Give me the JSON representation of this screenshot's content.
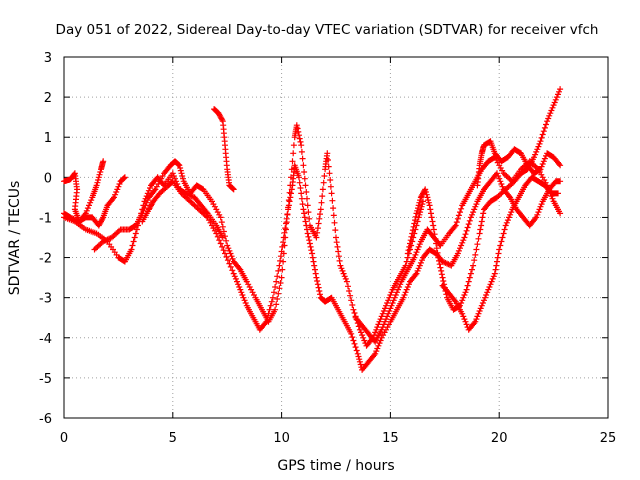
{
  "chart_data": {
    "type": "scatter",
    "title": "Day 051 of 2022, Sidereal Day-to-day VTEC variation (SDTVAR) for receiver vfch",
    "xlabel": "GPS time / hours",
    "ylabel": "SDTVAR / TECUs",
    "xlim": [
      0,
      25
    ],
    "ylim": [
      -6,
      3
    ],
    "xticks": [
      0,
      5,
      10,
      15,
      20,
      25
    ],
    "yticks": [
      -6,
      -5,
      -4,
      -3,
      -2,
      -1,
      0,
      1,
      2,
      3
    ],
    "grid": true,
    "marker": "+",
    "color": "#ff0000",
    "series": [
      {
        "name": "track-1",
        "points": [
          [
            0.0,
            -0.1
          ],
          [
            0.3,
            -0.05
          ],
          [
            0.5,
            0.1
          ],
          [
            0.6,
            -0.3
          ],
          [
            0.5,
            -0.8
          ],
          [
            0.7,
            -1.1
          ],
          [
            1.0,
            -1.0
          ],
          [
            1.3,
            -1.0
          ],
          [
            1.6,
            -1.2
          ],
          [
            1.8,
            -1.0
          ],
          [
            2.0,
            -0.7
          ],
          [
            2.3,
            -0.5
          ],
          [
            2.6,
            -0.1
          ],
          [
            2.8,
            0.0
          ]
        ]
      },
      {
        "name": "track-2",
        "points": [
          [
            0.0,
            -0.9
          ],
          [
            0.3,
            -1.0
          ],
          [
            0.7,
            -1.1
          ],
          [
            1.0,
            -0.9
          ],
          [
            1.3,
            -0.5
          ],
          [
            1.5,
            -0.2
          ],
          [
            1.7,
            0.2
          ],
          [
            1.8,
            0.4
          ]
        ]
      },
      {
        "name": "track-3",
        "points": [
          [
            0.0,
            -1.0
          ],
          [
            0.5,
            -1.1
          ],
          [
            1.0,
            -1.3
          ],
          [
            1.5,
            -1.4
          ],
          [
            2.0,
            -1.6
          ],
          [
            2.5,
            -2.0
          ],
          [
            2.8,
            -2.1
          ],
          [
            3.1,
            -1.8
          ],
          [
            3.4,
            -1.2
          ],
          [
            3.7,
            -0.6
          ],
          [
            4.0,
            -0.2
          ],
          [
            4.3,
            0.0
          ],
          [
            4.6,
            -0.2
          ],
          [
            5.0,
            0.1
          ],
          [
            5.3,
            -0.3
          ],
          [
            5.6,
            -0.4
          ],
          [
            6.0,
            -0.5
          ],
          [
            6.3,
            -0.7
          ],
          [
            6.6,
            -0.9
          ],
          [
            7.0,
            -1.2
          ],
          [
            7.3,
            -1.5
          ]
        ]
      },
      {
        "name": "track-4",
        "points": [
          [
            1.4,
            -1.8
          ],
          [
            1.8,
            -1.6
          ],
          [
            2.2,
            -1.5
          ],
          [
            2.6,
            -1.3
          ],
          [
            3.0,
            -1.3
          ],
          [
            3.3,
            -1.2
          ],
          [
            3.6,
            -0.9
          ],
          [
            3.9,
            -0.5
          ],
          [
            4.2,
            -0.3
          ],
          [
            4.6,
            0.1
          ],
          [
            4.9,
            0.3
          ],
          [
            5.1,
            0.4
          ],
          [
            5.3,
            0.3
          ],
          [
            5.5,
            -0.1
          ],
          [
            5.8,
            -0.4
          ],
          [
            6.1,
            -0.2
          ],
          [
            6.4,
            -0.3
          ],
          [
            6.8,
            -0.6
          ],
          [
            7.2,
            -1.0
          ],
          [
            7.5,
            -1.7
          ],
          [
            7.8,
            -2.1
          ],
          [
            8.1,
            -2.3
          ],
          [
            8.4,
            -2.6
          ],
          [
            8.8,
            -3.0
          ],
          [
            9.1,
            -3.3
          ],
          [
            9.4,
            -3.6
          ],
          [
            9.7,
            -3.3
          ],
          [
            10.0,
            -2.5
          ],
          [
            10.2,
            -1.3
          ],
          [
            10.4,
            -0.2
          ],
          [
            10.6,
            1.0
          ],
          [
            10.7,
            1.3
          ],
          [
            10.9,
            0.8
          ],
          [
            11.1,
            -0.2
          ],
          [
            11.3,
            -1.2
          ],
          [
            11.6,
            -1.5
          ],
          [
            11.8,
            -0.8
          ],
          [
            12.0,
            0.2
          ],
          [
            12.1,
            0.6
          ],
          [
            12.3,
            -0.4
          ],
          [
            12.5,
            -1.5
          ],
          [
            12.7,
            -2.2
          ],
          [
            13.0,
            -2.6
          ],
          [
            13.3,
            -3.3
          ],
          [
            13.6,
            -3.8
          ],
          [
            13.9,
            -4.2
          ],
          [
            14.2,
            -4.0
          ],
          [
            14.5,
            -3.6
          ],
          [
            14.8,
            -3.2
          ],
          [
            15.1,
            -2.8
          ],
          [
            15.4,
            -2.5
          ],
          [
            15.7,
            -2.2
          ],
          [
            16.0,
            -1.6
          ],
          [
            16.3,
            -1.0
          ],
          [
            16.5,
            -0.6
          ]
        ]
      },
      {
        "name": "track-5",
        "points": [
          [
            3.6,
            -1.1
          ],
          [
            3.9,
            -0.8
          ],
          [
            4.1,
            -0.6
          ],
          [
            4.4,
            -0.4
          ],
          [
            4.8,
            -0.2
          ],
          [
            5.0,
            -0.1
          ],
          [
            5.4,
            -0.4
          ],
          [
            5.8,
            -0.6
          ],
          [
            6.2,
            -0.8
          ],
          [
            6.6,
            -1.0
          ],
          [
            7.0,
            -1.4
          ],
          [
            7.4,
            -1.9
          ],
          [
            7.8,
            -2.4
          ],
          [
            8.1,
            -2.8
          ],
          [
            8.4,
            -3.2
          ],
          [
            8.7,
            -3.5
          ],
          [
            9.0,
            -3.8
          ],
          [
            9.3,
            -3.6
          ],
          [
            9.6,
            -3.0
          ],
          [
            9.9,
            -2.2
          ],
          [
            10.1,
            -1.5
          ],
          [
            10.3,
            -0.8
          ],
          [
            10.5,
            -0.2
          ],
          [
            10.6,
            0.3
          ],
          [
            10.8,
            0.0
          ],
          [
            11.0,
            -0.8
          ],
          [
            11.2,
            -1.4
          ],
          [
            11.4,
            -1.9
          ],
          [
            11.6,
            -2.5
          ],
          [
            11.8,
            -3.0
          ],
          [
            12.0,
            -3.1
          ],
          [
            12.3,
            -3.0
          ],
          [
            12.6,
            -3.3
          ],
          [
            12.9,
            -3.6
          ],
          [
            13.2,
            -3.9
          ],
          [
            13.5,
            -4.4
          ],
          [
            13.7,
            -4.8
          ],
          [
            14.0,
            -4.6
          ],
          [
            14.3,
            -4.4
          ],
          [
            14.6,
            -4.0
          ],
          [
            15.0,
            -3.6
          ],
          [
            15.3,
            -3.3
          ],
          [
            15.6,
            -3.0
          ],
          [
            15.9,
            -2.6
          ],
          [
            16.2,
            -2.4
          ],
          [
            16.5,
            -2.0
          ],
          [
            16.8,
            -1.8
          ],
          [
            17.1,
            -1.9
          ],
          [
            17.4,
            -2.1
          ],
          [
            17.8,
            -2.2
          ],
          [
            18.1,
            -1.9
          ],
          [
            18.4,
            -1.5
          ],
          [
            18.7,
            -1.0
          ],
          [
            19.0,
            -0.6
          ],
          [
            19.3,
            -0.3
          ],
          [
            19.6,
            -0.1
          ],
          [
            19.9,
            0.1
          ],
          [
            20.2,
            -0.3
          ],
          [
            20.5,
            -0.5
          ],
          [
            20.8,
            -0.8
          ],
          [
            21.1,
            -1.0
          ],
          [
            21.4,
            -1.2
          ],
          [
            21.7,
            -1.0
          ],
          [
            22.0,
            -0.6
          ],
          [
            22.3,
            -0.3
          ],
          [
            22.6,
            -0.1
          ],
          [
            22.8,
            -0.1
          ]
        ]
      },
      {
        "name": "track-6",
        "points": [
          [
            6.9,
            1.7
          ],
          [
            7.1,
            1.6
          ],
          [
            7.3,
            1.4
          ],
          [
            7.4,
            0.8
          ],
          [
            7.5,
            0.2
          ],
          [
            7.6,
            -0.2
          ],
          [
            7.8,
            -0.3
          ]
        ]
      },
      {
        "name": "track-7",
        "points": [
          [
            13.4,
            -3.5
          ],
          [
            13.7,
            -3.7
          ],
          [
            14.0,
            -3.9
          ],
          [
            14.3,
            -4.1
          ],
          [
            14.6,
            -3.8
          ],
          [
            14.9,
            -3.4
          ],
          [
            15.2,
            -3.0
          ],
          [
            15.5,
            -2.6
          ],
          [
            15.8,
            -2.3
          ],
          [
            16.1,
            -2.0
          ],
          [
            16.4,
            -1.6
          ],
          [
            16.7,
            -1.3
          ],
          [
            17.0,
            -1.5
          ],
          [
            17.3,
            -1.7
          ],
          [
            17.7,
            -1.4
          ],
          [
            18.0,
            -1.2
          ],
          [
            18.3,
            -0.7
          ],
          [
            18.6,
            -0.4
          ],
          [
            18.9,
            -0.1
          ],
          [
            19.2,
            0.2
          ],
          [
            19.5,
            0.4
          ],
          [
            19.8,
            0.5
          ],
          [
            20.2,
            0.1
          ],
          [
            20.6,
            -0.1
          ],
          [
            21.0,
            0.2
          ],
          [
            21.4,
            0.4
          ],
          [
            21.8,
            0.2
          ],
          [
            22.2,
            -0.2
          ],
          [
            22.5,
            -0.6
          ],
          [
            22.8,
            -0.9
          ]
        ]
      },
      {
        "name": "track-8",
        "points": [
          [
            15.8,
            -1.9
          ],
          [
            16.0,
            -1.4
          ],
          [
            16.2,
            -0.9
          ],
          [
            16.4,
            -0.5
          ],
          [
            16.6,
            -0.3
          ],
          [
            16.8,
            -0.7
          ],
          [
            17.0,
            -1.3
          ],
          [
            17.2,
            -2.0
          ],
          [
            17.4,
            -2.5
          ],
          [
            17.6,
            -3.0
          ],
          [
            17.9,
            -3.3
          ],
          [
            18.2,
            -3.2
          ],
          [
            18.5,
            -2.8
          ],
          [
            18.8,
            -2.2
          ],
          [
            19.1,
            -1.4
          ],
          [
            19.3,
            -0.8
          ],
          [
            19.6,
            -0.6
          ],
          [
            19.9,
            -0.5
          ],
          [
            20.3,
            -0.3
          ],
          [
            20.7,
            -0.1
          ],
          [
            21.0,
            0.1
          ],
          [
            21.3,
            0.2
          ],
          [
            21.6,
            0.5
          ],
          [
            21.9,
            0.9
          ],
          [
            22.2,
            1.4
          ],
          [
            22.5,
            1.8
          ],
          [
            22.8,
            2.2
          ]
        ]
      },
      {
        "name": "track-9",
        "points": [
          [
            17.4,
            -2.7
          ],
          [
            17.7,
            -2.9
          ],
          [
            18.0,
            -3.1
          ],
          [
            18.3,
            -3.4
          ],
          [
            18.6,
            -3.8
          ],
          [
            18.9,
            -3.6
          ],
          [
            19.2,
            -3.2
          ],
          [
            19.5,
            -2.8
          ],
          [
            19.8,
            -2.4
          ],
          [
            20.0,
            -1.8
          ],
          [
            20.3,
            -1.2
          ],
          [
            20.6,
            -0.8
          ],
          [
            20.9,
            -0.5
          ],
          [
            21.2,
            -0.2
          ],
          [
            21.5,
            0.0
          ],
          [
            21.8,
            -0.1
          ],
          [
            22.1,
            -0.2
          ],
          [
            22.4,
            -0.4
          ],
          [
            22.7,
            -0.4
          ]
        ]
      },
      {
        "name": "track-10",
        "points": [
          [
            19.0,
            -0.2
          ],
          [
            19.1,
            0.3
          ],
          [
            19.2,
            0.6
          ],
          [
            19.3,
            0.8
          ],
          [
            19.6,
            0.9
          ],
          [
            19.8,
            0.6
          ],
          [
            20.1,
            0.4
          ],
          [
            20.4,
            0.5
          ],
          [
            20.7,
            0.7
          ],
          [
            21.0,
            0.6
          ],
          [
            21.3,
            0.3
          ],
          [
            21.6,
            0.1
          ],
          [
            21.9,
            0.2
          ],
          [
            22.2,
            0.6
          ],
          [
            22.5,
            0.5
          ],
          [
            22.8,
            0.3
          ]
        ]
      }
    ]
  }
}
